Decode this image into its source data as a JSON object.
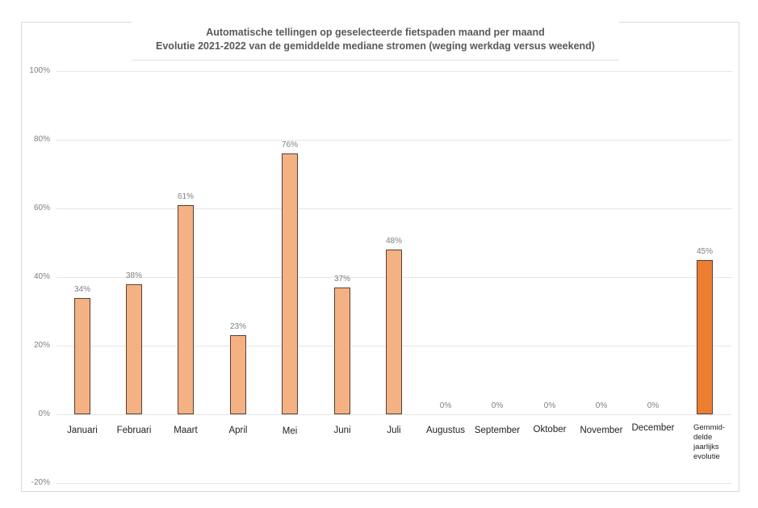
{
  "chart_data": {
    "type": "bar",
    "title": "Automatische tellingen op geselecteerde fietspaden maand per maand",
    "subtitle": "Evolutie 2021-2022 van de gemiddelde mediane stromen (weging werkdag versus weekend)",
    "xlabel": "",
    "ylabel": "",
    "ylim": [
      -0.2,
      1.0
    ],
    "yticks": [
      "100%",
      "80%",
      "60%",
      "40%",
      "20%",
      "0%",
      "-20%"
    ],
    "grid": true,
    "legend": "none",
    "categories": [
      "Januari",
      "Februari",
      "Maart",
      "April",
      "Mei",
      "Juni",
      "Juli",
      "Augustus",
      "September",
      "Oktober",
      "November",
      "December",
      "Gemmid-delde jaarlijks evolutie"
    ],
    "values": [
      34,
      38,
      61,
      23,
      76,
      37,
      48,
      0,
      0,
      0,
      0,
      0,
      45
    ],
    "data_labels": [
      "34%",
      "38%",
      "61%",
      "23%",
      "76%",
      "37%",
      "48%",
      "0%",
      "0%",
      "0%",
      "0%",
      "0%",
      "45%"
    ],
    "colors": {
      "month_bar": "#f4b183",
      "average_bar": "#ed7d31",
      "bar_border": "#5b3f32",
      "gridline": "#e6e6e6"
    }
  },
  "labels": {
    "title_line1": "Automatische tellingen op geselecteerde fietspaden maand per maand",
    "title_line2": "Evolutie 2021-2022 van de gemiddelde mediane stromen (weging werkdag versus weekend)",
    "avg_label_lines": [
      "Gemmid-",
      "delde",
      "jaarlijks",
      "evolutie"
    ]
  }
}
